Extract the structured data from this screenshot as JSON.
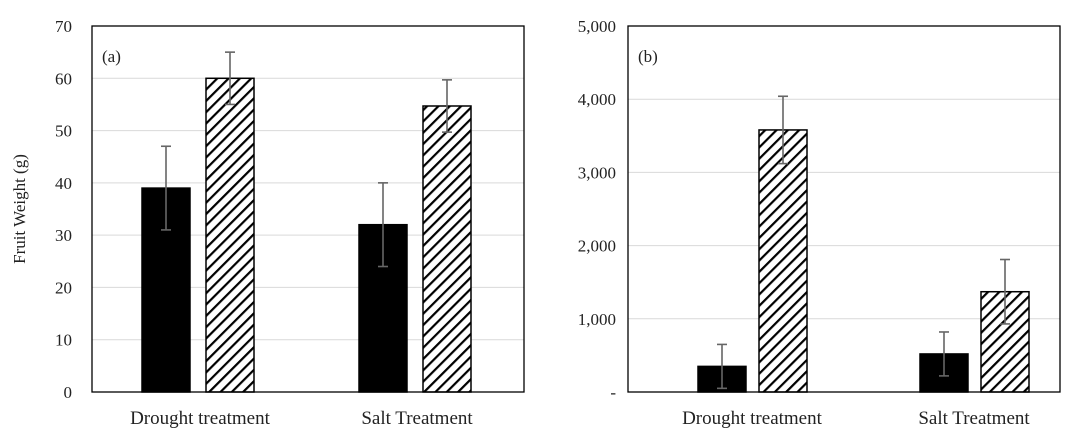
{
  "chart_data": [
    {
      "type": "bar",
      "panel_label": "(a)",
      "ylabel": "Fruit Weight (g)",
      "ylim": [
        0,
        70
      ],
      "yticks": [
        0,
        10,
        20,
        30,
        40,
        50,
        60,
        70
      ],
      "ytick_labels": [
        "0",
        "10",
        "20",
        "30",
        "40",
        "50",
        "60",
        "70"
      ],
      "categories": [
        "Drought treatment",
        "Salt Treatment"
      ],
      "series": [
        {
          "style": "solid-black",
          "values": [
            39,
            32
          ],
          "errors": [
            8,
            8
          ]
        },
        {
          "style": "diagonal-hatch",
          "values": [
            60,
            54.7
          ],
          "errors": [
            5,
            5
          ]
        }
      ],
      "grid": "horizontal"
    },
    {
      "type": "bar",
      "panel_label": "(b)",
      "ylabel": "",
      "ylim": [
        0,
        5000
      ],
      "yticks": [
        0,
        1000,
        2000,
        3000,
        4000,
        5000
      ],
      "ytick_labels": [
        "-",
        "1,000",
        "2,000",
        "3,000",
        "4,000",
        "5,000"
      ],
      "categories": [
        "Drought treatment",
        "Salt Treatment"
      ],
      "series": [
        {
          "style": "solid-black",
          "values": [
            350,
            520
          ],
          "errors": [
            300,
            300
          ]
        },
        {
          "style": "diagonal-hatch",
          "values": [
            3580,
            1370
          ],
          "errors": [
            460,
            440
          ]
        }
      ],
      "grid": "horizontal"
    }
  ],
  "colors": {
    "bar_fill": "#000000",
    "hatch": "#000000",
    "grid": "#d9d9d9",
    "error_bar": "#666666",
    "frame": "#000000"
  }
}
